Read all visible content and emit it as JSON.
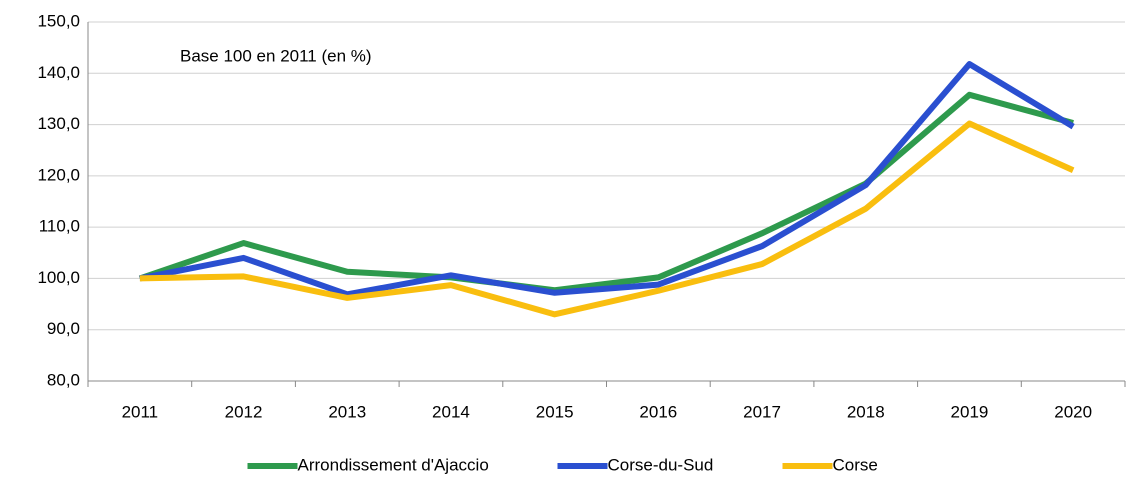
{
  "chart_data": {
    "type": "line",
    "annotation": "Base 100 en 2011 (en %)",
    "categories": [
      "2011",
      "2012",
      "2013",
      "2014",
      "2015",
      "2016",
      "2017",
      "2018",
      "2019",
      "2020"
    ],
    "series": [
      {
        "name": "Arrondissement d'Ajaccio",
        "color": "#2e9a4d",
        "values": [
          100,
          106.9,
          101.3,
          100.2,
          97.7,
          100.2,
          108.8,
          118.5,
          135.8,
          130.3
        ]
      },
      {
        "name": "Corse-du-Sud",
        "color": "#2a4fd0",
        "values": [
          100,
          104,
          96.9,
          100.6,
          97.2,
          98.8,
          106.3,
          118.2,
          141.8,
          129.6
        ]
      },
      {
        "name": "Corse",
        "color": "#f9be0f",
        "values": [
          100,
          100.4,
          96.2,
          98.7,
          93,
          97.6,
          102.8,
          113.6,
          130.2,
          121.1
        ]
      }
    ],
    "ylim": [
      80,
      150
    ],
    "yticks": [
      {
        "value": 80,
        "label": "80,0"
      },
      {
        "value": 90,
        "label": "90,0"
      },
      {
        "value": 100,
        "label": "100,0"
      },
      {
        "value": 110,
        "label": "110,0"
      },
      {
        "value": 120,
        "label": "120,0"
      },
      {
        "value": 130,
        "label": "130,0"
      },
      {
        "value": 140,
        "label": "140,0"
      },
      {
        "value": 150,
        "label": "150,0"
      }
    ],
    "grid": true
  }
}
